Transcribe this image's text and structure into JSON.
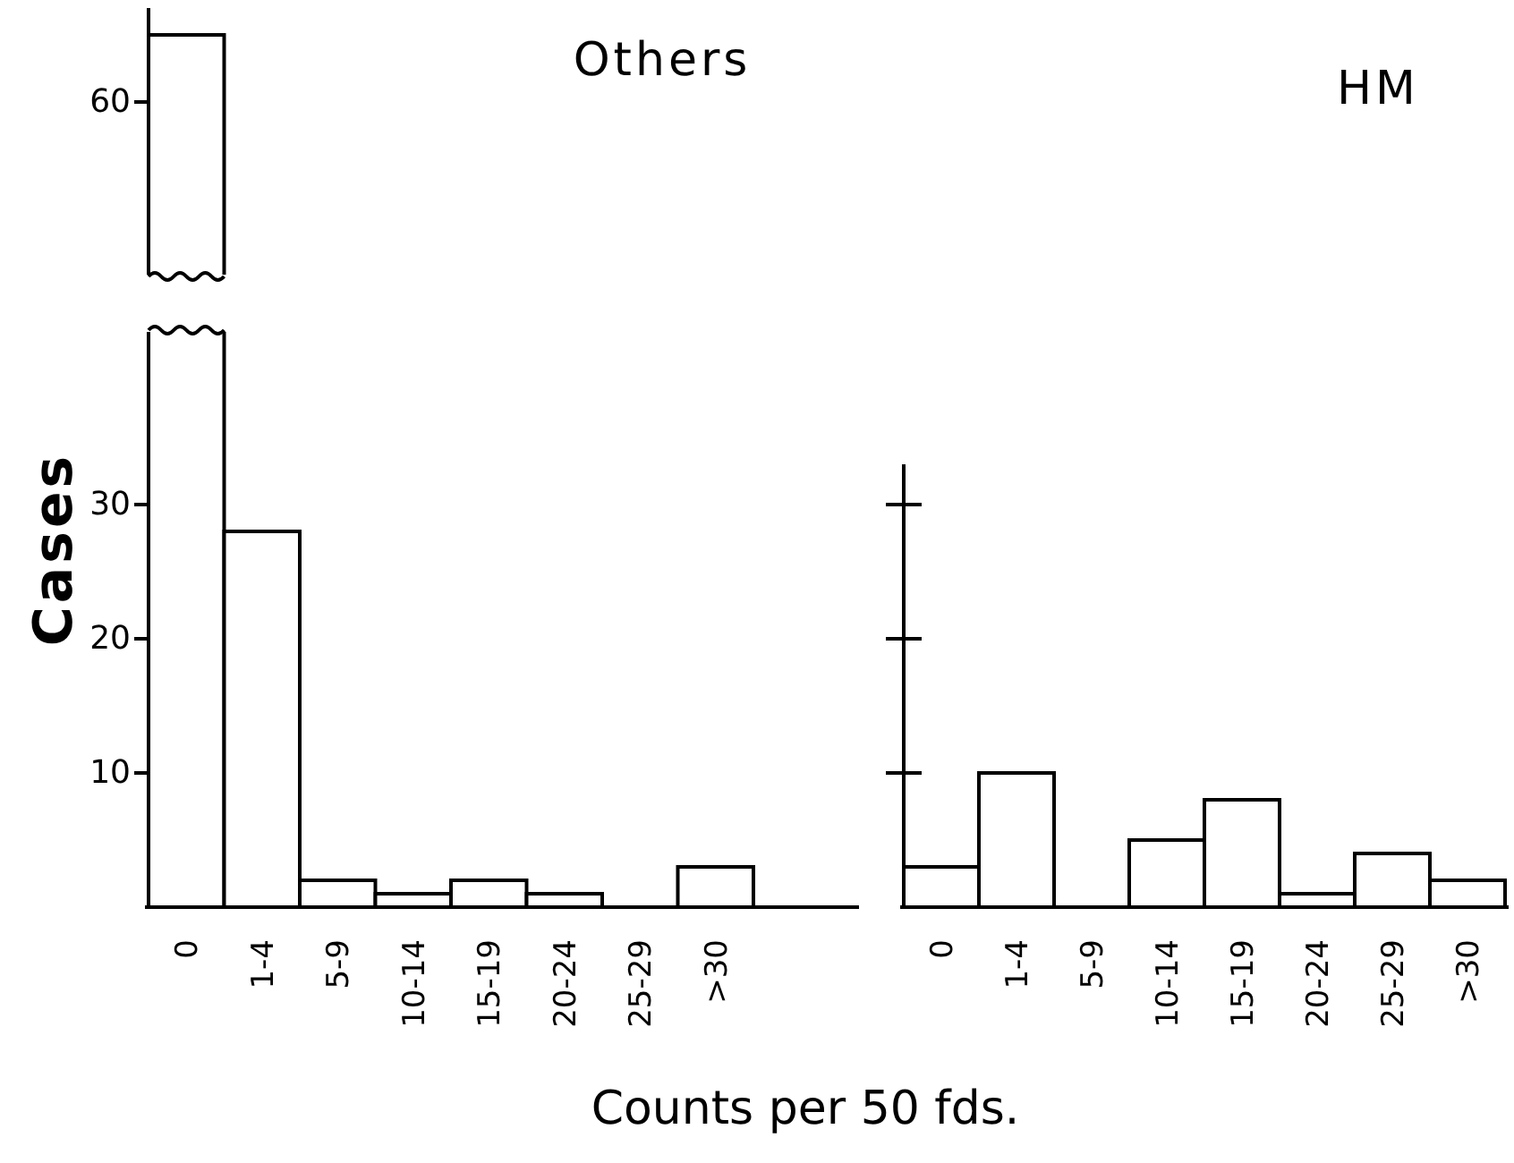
{
  "chart_data": [
    {
      "type": "bar",
      "title": "Others",
      "ylabel": "Cases",
      "xlabel": "Counts per 50 fds.",
      "categories": [
        "0",
        "1-4",
        "5-9",
        "10-14",
        "15-19",
        "20-24",
        "25-29",
        ">30"
      ],
      "values": [
        65,
        28,
        2,
        1,
        2,
        1,
        0,
        3
      ],
      "color": "#ffffff",
      "ylim": [
        0,
        67
      ],
      "yticks": [
        10,
        20,
        30,
        60
      ]
    },
    {
      "type": "bar",
      "title": "HM",
      "categories": [
        "0",
        "1-4",
        "5-9",
        "10-14",
        "15-19",
        "20-24",
        "25-29",
        ">30"
      ],
      "values": [
        3,
        10,
        0,
        5,
        8,
        1,
        4,
        2
      ],
      "color": "#ffffff",
      "ylim": [
        0,
        33
      ],
      "yticks": [
        10,
        20,
        30
      ],
      "tick_labels": "x"
    }
  ]
}
